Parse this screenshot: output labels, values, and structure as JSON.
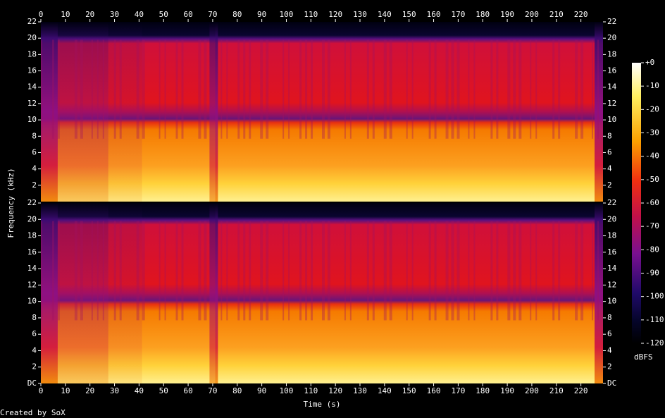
{
  "chart_data": {
    "type": "spectrogram",
    "x_label": "Time (s)",
    "y_label": "Frequency (kHz)",
    "credit": "Created by SoX",
    "xlim": [
      0,
      229
    ],
    "xticks": [
      0,
      10,
      20,
      30,
      40,
      50,
      60,
      70,
      80,
      90,
      100,
      110,
      120,
      130,
      140,
      150,
      160,
      170,
      180,
      190,
      200,
      210,
      220
    ],
    "channels": [
      {
        "ylim": [
          0,
          22
        ],
        "yticks": [
          2,
          4,
          6,
          8,
          10,
          12,
          14,
          16,
          18,
          20,
          22
        ]
      },
      {
        "ylim": [
          0,
          22
        ],
        "yticks": [
          {
            "value": 0,
            "label": "DC"
          },
          2,
          4,
          6,
          8,
          10,
          12,
          14,
          16,
          18,
          20,
          22
        ]
      }
    ],
    "colorbar": {
      "label": "dBFS",
      "lim": [
        -120,
        0
      ],
      "ticks": [
        {
          "value": 0,
          "label": "+0"
        },
        -10,
        -20,
        -30,
        -40,
        -50,
        -60,
        -70,
        -80,
        -90,
        -100,
        -110,
        -120
      ]
    }
  }
}
